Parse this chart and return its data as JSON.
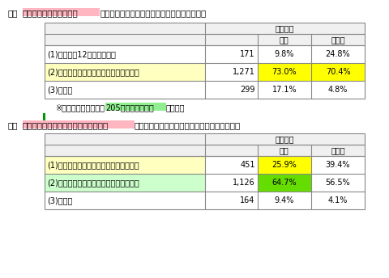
{
  "title2_prefix": "２．",
  "title2_highlight": "高齢者施設等の入所者等",
  "title2_suffix": "に対する追加接種の接種間隔の短縮の取組状況",
  "title3_prefix": "３．",
  "title3_highlight": "高齢者施設等の入所者等以外の高齢者",
  "title3_suffix": "に対する追加接種の接種間隔の短縮の取組状況",
  "note_prefix": "※「その他」のうち、",
  "note_highlight": "205は２月から開始",
  "note_suffix": "と回答。",
  "header_col0": "市町村数",
  "header_col1": "割合",
  "header_col2": "人口比",
  "table1_rows": [
    {
      "label": "(1)令和３年12月中から開始",
      "count": "171",
      "ratio": "9.8%",
      "pop": "24.8%",
      "label_bg": null,
      "ratio_bg": null,
      "pop_bg": null
    },
    {
      "label": "(2)令和４年１月中から開始又は開始予定",
      "count": "1,271",
      "ratio": "73.0%",
      "pop": "70.4%",
      "label_bg": "#ffffc0",
      "ratio_bg": "#ffff00",
      "pop_bg": "#ffff00"
    },
    {
      "label": "(3)その他",
      "count": "299",
      "ratio": "17.1%",
      "pop": "4.8%",
      "label_bg": null,
      "ratio_bg": null,
      "pop_bg": null
    }
  ],
  "table2_rows": [
    {
      "label": "(1)令和４年１月中から開始又は開始予定",
      "count": "451",
      "ratio": "25.9%",
      "pop": "39.4%",
      "label_bg": "#ffffc0",
      "ratio_bg": "#ffff00",
      "pop_bg": null
    },
    {
      "label": "(2)令和４年２月中から開始又は開始予定",
      "count": "1,126",
      "ratio": "64.7%",
      "pop": "56.5%",
      "label_bg": "#ccffcc",
      "ratio_bg": "#66dd00",
      "pop_bg": null
    },
    {
      "label": "(3)その他",
      "count": "164",
      "ratio": "9.4%",
      "pop": "4.1%",
      "label_bg": null,
      "ratio_bg": null,
      "pop_bg": null
    }
  ],
  "bg_color": "#ffffff",
  "border_color": "#888888",
  "header_bg": "#f0f0f0",
  "highlight_pink": "#ffb6c1",
  "note_green": "#90ee90",
  "green_bar_color": "#009900",
  "font_size": 7.0
}
